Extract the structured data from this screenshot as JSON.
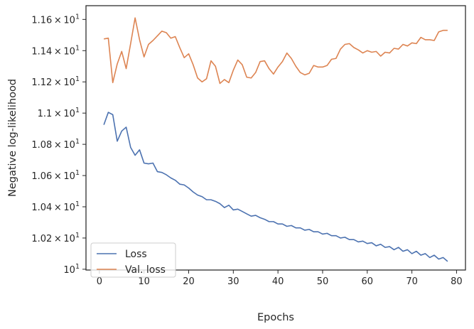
{
  "chart_data": {
    "type": "line",
    "xlabel": "Epochs",
    "ylabel": "Negative log-likelihood",
    "xlim": [
      -3,
      82
    ],
    "ylim": [
      9.995,
      11.688
    ],
    "x_ticks": [
      0,
      10,
      20,
      30,
      40,
      50,
      60,
      70,
      80
    ],
    "y_ticks": [
      {
        "value": 10.0,
        "base": "10",
        "exp": "1"
      },
      {
        "value": 10.2,
        "base": "1.02 × 10",
        "exp": "1"
      },
      {
        "value": 10.4,
        "base": "1.04 × 10",
        "exp": "1"
      },
      {
        "value": 10.6,
        "base": "1.06 × 10",
        "exp": "1"
      },
      {
        "value": 10.8,
        "base": "1.08 × 10",
        "exp": "1"
      },
      {
        "value": 11.0,
        "base": "1.1 × 10",
        "exp": "1"
      },
      {
        "value": 11.2,
        "base": "1.12 × 10",
        "exp": "1"
      },
      {
        "value": 11.4,
        "base": "1.14 × 10",
        "exp": "1"
      },
      {
        "value": 11.6,
        "base": "1.16 × 10",
        "exp": "1"
      }
    ],
    "legend_position": "lower-left",
    "grid": false,
    "x": [
      1,
      2,
      3,
      4,
      5,
      6,
      7,
      8,
      9,
      10,
      11,
      12,
      13,
      14,
      15,
      16,
      17,
      18,
      19,
      20,
      21,
      22,
      23,
      24,
      25,
      26,
      27,
      28,
      29,
      30,
      31,
      32,
      33,
      34,
      35,
      36,
      37,
      38,
      39,
      40,
      41,
      42,
      43,
      44,
      45,
      46,
      47,
      48,
      49,
      50,
      51,
      52,
      53,
      54,
      55,
      56,
      57,
      58,
      59,
      60,
      61,
      62,
      63,
      64,
      65,
      66,
      67,
      68,
      69,
      70,
      71,
      72,
      73,
      74,
      75,
      76,
      77,
      78
    ],
    "series": [
      {
        "name": "Loss",
        "color": "#4c72b0",
        "values": [
          10.925,
          11.005,
          10.99,
          10.82,
          10.885,
          10.91,
          10.78,
          10.73,
          10.765,
          10.68,
          10.675,
          10.68,
          10.625,
          10.62,
          10.605,
          10.585,
          10.57,
          10.545,
          10.54,
          10.52,
          10.495,
          10.475,
          10.465,
          10.445,
          10.445,
          10.435,
          10.42,
          10.395,
          10.41,
          10.38,
          10.385,
          10.37,
          10.355,
          10.34,
          10.345,
          10.33,
          10.32,
          10.305,
          10.305,
          10.29,
          10.29,
          10.275,
          10.28,
          10.265,
          10.265,
          10.25,
          10.255,
          10.24,
          10.24,
          10.225,
          10.23,
          10.215,
          10.215,
          10.2,
          10.205,
          10.19,
          10.19,
          10.175,
          10.18,
          10.165,
          10.17,
          10.15,
          10.16,
          10.14,
          10.145,
          10.125,
          10.14,
          10.115,
          10.125,
          10.1,
          10.115,
          10.09,
          10.1,
          10.075,
          10.09,
          10.065,
          10.075,
          10.05
        ]
      },
      {
        "name": "Val. loss",
        "color": "#dd8452",
        "values": [
          11.475,
          11.48,
          11.195,
          11.315,
          11.395,
          11.285,
          11.445,
          11.61,
          11.47,
          11.36,
          11.44,
          11.465,
          11.495,
          11.525,
          11.515,
          11.48,
          11.49,
          11.42,
          11.355,
          11.38,
          11.31,
          11.225,
          11.2,
          11.22,
          11.335,
          11.3,
          11.19,
          11.215,
          11.195,
          11.275,
          11.34,
          11.31,
          11.23,
          11.225,
          11.26,
          11.33,
          11.335,
          11.285,
          11.25,
          11.295,
          11.33,
          11.385,
          11.35,
          11.3,
          11.26,
          11.245,
          11.255,
          11.305,
          11.295,
          11.295,
          11.305,
          11.345,
          11.35,
          11.41,
          11.44,
          11.445,
          11.42,
          11.405,
          11.385,
          11.4,
          11.39,
          11.395,
          11.365,
          11.39,
          11.385,
          11.415,
          11.41,
          11.44,
          11.43,
          11.45,
          11.445,
          11.485,
          11.47,
          11.47,
          11.465,
          11.52,
          11.53,
          11.53
        ]
      }
    ]
  }
}
